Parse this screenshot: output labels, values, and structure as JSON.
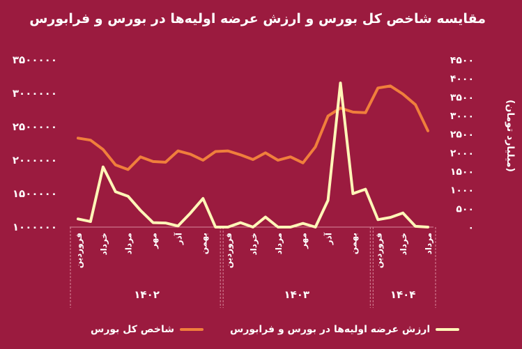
{
  "colors": {
    "background": "#9b1b3f",
    "index_line": "#f07f3c",
    "ipo_line": "#fff6b8",
    "grid": "#d98a9c"
  },
  "chart_data": {
    "type": "line",
    "title": "مقایسه شاخص کل بورس و ارزش عرضه اولیه‌ها در بورس و فرابورس",
    "y_left_ticks": [
      "۱۰۰۰۰۰۰",
      "۱۵۰۰۰۰۰",
      "۲۰۰۰۰۰۰",
      "۲۵۰۰۰۰۰",
      "۳۰۰۰۰۰۰",
      "۳۵۰۰۰۰۰"
    ],
    "y_left_values": [
      1000000,
      1500000,
      2000000,
      2500000,
      3000000,
      3500000
    ],
    "y_left_range": [
      1000000,
      3500000
    ],
    "y_right_ticks": [
      "۰",
      "۵۰۰",
      "۱۰۰۰",
      "۱۵۰۰",
      "۲۰۰۰",
      "۲۵۰۰",
      "۳۰۰۰",
      "۳۵۰۰",
      "۴۰۰۰",
      "۴۵۰۰"
    ],
    "y_right_values": [
      0,
      500,
      1000,
      1500,
      2000,
      2500,
      3000,
      3500,
      4000,
      4500
    ],
    "y_right_range": [
      0,
      4500
    ],
    "y_right_label": "(میلیارد تومان)",
    "x_tick_labels": [
      "فروردین",
      "خرداد",
      "مرداد",
      "مهر",
      "آذر",
      "بهمن",
      "فروردین",
      "خرداد",
      "مرداد",
      "مهر",
      "آذر",
      "بهمن",
      "فروردین",
      "خرداد",
      "مرداد"
    ],
    "x_tick_index": [
      0,
      2,
      4,
      6,
      8,
      10,
      12,
      14,
      16,
      18,
      20,
      22,
      24,
      26,
      28
    ],
    "year_groups": [
      {
        "label": "۱۴۰۲",
        "start": 0,
        "end": 11
      },
      {
        "label": "۱۴۰۳",
        "start": 12,
        "end": 23
      },
      {
        "label": "۱۴۰۴",
        "start": 24,
        "end": 28
      }
    ],
    "series": [
      {
        "name": "شاخص کل بورس",
        "axis": "left",
        "values": [
          2330000,
          2300000,
          2160000,
          1930000,
          1860000,
          2050000,
          1980000,
          1970000,
          2140000,
          2090000,
          2000000,
          2130000,
          2140000,
          2080000,
          2010000,
          2110000,
          2000000,
          2050000,
          1960000,
          2200000,
          2660000,
          2780000,
          2720000,
          2710000,
          3080000,
          3110000,
          2990000,
          2830000,
          2440000
        ]
      },
      {
        "name": "ارزش عرضه اولیه‌ها در بورس و فرابورس",
        "axis": "right",
        "values": [
          220,
          150,
          1620,
          950,
          830,
          450,
          120,
          110,
          30,
          380,
          770,
          0,
          0,
          120,
          0,
          270,
          0,
          0,
          100,
          0,
          720,
          3880,
          900,
          1020,
          200,
          260,
          380,
          20,
          0
        ]
      }
    ]
  }
}
